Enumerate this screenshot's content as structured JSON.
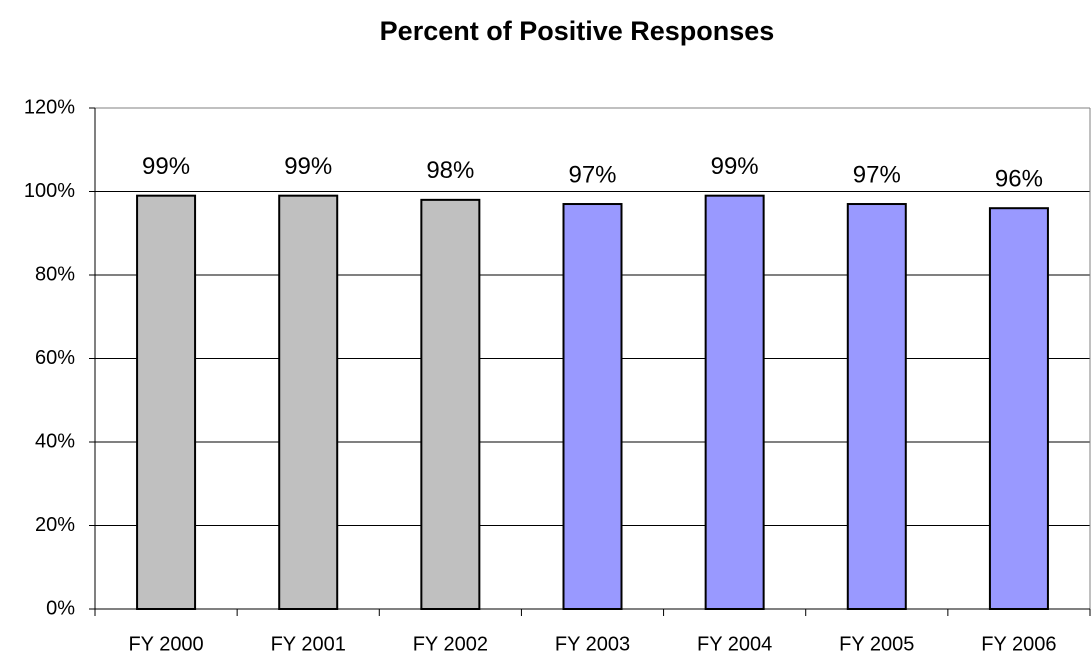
{
  "chart_data": {
    "type": "bar",
    "title": "Percent of Positive Responses",
    "categories": [
      "FY 2000",
      "FY 2001",
      "FY 2002",
      "FY 2003",
      "FY 2004",
      "FY 2005",
      "FY 2006"
    ],
    "values": [
      99,
      99,
      98,
      97,
      99,
      97,
      96
    ],
    "value_labels": [
      "99%",
      "99%",
      "98%",
      "97%",
      "99%",
      "97%",
      "96%"
    ],
    "colors": [
      "#c0c0c0",
      "#c0c0c0",
      "#c0c0c0",
      "#9999ff",
      "#9999ff",
      "#9999ff",
      "#9999ff"
    ],
    "ylim": [
      0,
      120
    ],
    "yticks": [
      {
        "value": 0,
        "label": "0%"
      },
      {
        "value": 20,
        "label": "20%"
      },
      {
        "value": 40,
        "label": "40%"
      },
      {
        "value": 60,
        "label": "60%"
      },
      {
        "value": 80,
        "label": "80%"
      },
      {
        "value": 100,
        "label": "100%"
      },
      {
        "value": 120,
        "label": "120%"
      }
    ],
    "grid": true
  }
}
